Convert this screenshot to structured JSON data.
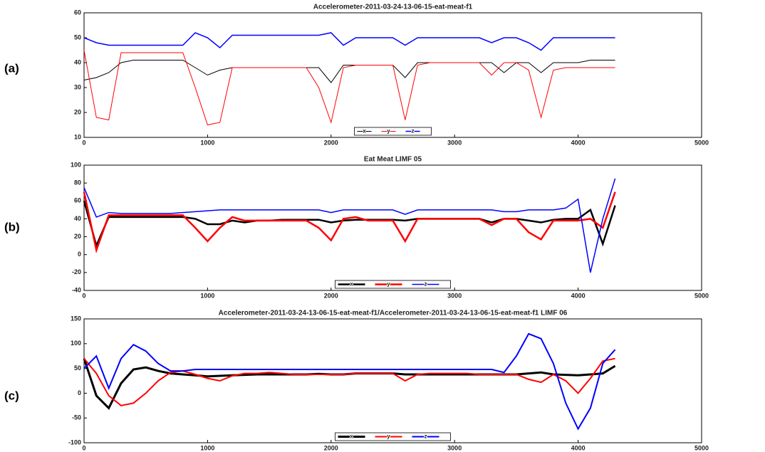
{
  "chart_data": [
    {
      "type": "line",
      "panel_label": "(a)",
      "title": "Accelerometer-2011-03-24-13-06-15-eat-meat-f1",
      "x": [
        0,
        100,
        200,
        300,
        400,
        500,
        600,
        700,
        800,
        900,
        1000,
        1100,
        1200,
        1300,
        1400,
        1500,
        1600,
        1700,
        1800,
        1900,
        2000,
        2100,
        2200,
        2300,
        2400,
        2500,
        2600,
        2700,
        2800,
        2900,
        3000,
        3100,
        3200,
        3300,
        3400,
        3500,
        3600,
        3700,
        3800,
        3900,
        4000,
        4100,
        4200,
        4300
      ],
      "xlim": [
        0,
        5000
      ],
      "xticks": [
        0,
        1000,
        2000,
        3000,
        4000,
        5000
      ],
      "ylim": [
        10,
        60
      ],
      "yticks": [
        10,
        20,
        30,
        40,
        50,
        60
      ],
      "legend": "lower center",
      "series": [
        {
          "name": "x",
          "color": "#000000",
          "linewidth": 1,
          "values": [
            33,
            34,
            36,
            40,
            41,
            41,
            41,
            41,
            41,
            38,
            35,
            37,
            38,
            38,
            38,
            38,
            38,
            38,
            38,
            38,
            32,
            39,
            39,
            39,
            39,
            39,
            34,
            40,
            40,
            40,
            40,
            40,
            40,
            40,
            36,
            40,
            40,
            36,
            40,
            40,
            40,
            41,
            41,
            41
          ]
        },
        {
          "name": "y",
          "color": "#ff0000",
          "linewidth": 1,
          "values": [
            45,
            18,
            17,
            44,
            44,
            44,
            44,
            44,
            44,
            30,
            15,
            16,
            38,
            38,
            38,
            38,
            38,
            38,
            38,
            30,
            16,
            38,
            39,
            39,
            39,
            39,
            17,
            39,
            40,
            40,
            40,
            40,
            40,
            35,
            40,
            40,
            37,
            18,
            37,
            38,
            38,
            38,
            38,
            38
          ]
        },
        {
          "name": "z",
          "color": "#0000ff",
          "linewidth": 1.5,
          "values": [
            50,
            48,
            47,
            47,
            47,
            47,
            47,
            47,
            47,
            52,
            50,
            46,
            51,
            51,
            51,
            51,
            51,
            51,
            51,
            51,
            52,
            47,
            50,
            50,
            50,
            50,
            47,
            50,
            50,
            50,
            50,
            50,
            50,
            48,
            50,
            50,
            48,
            45,
            50,
            50,
            50,
            50,
            50,
            50
          ]
        }
      ]
    },
    {
      "type": "line",
      "panel_label": "(b)",
      "title": "Eat Meat LIMF 05",
      "x": [
        0,
        100,
        200,
        300,
        400,
        500,
        600,
        700,
        800,
        900,
        1000,
        1100,
        1200,
        1300,
        1400,
        1500,
        1600,
        1700,
        1800,
        1900,
        2000,
        2100,
        2200,
        2300,
        2400,
        2500,
        2600,
        2700,
        2800,
        2900,
        3000,
        3100,
        3200,
        3300,
        3400,
        3500,
        3600,
        3700,
        3800,
        3900,
        4000,
        4100,
        4200,
        4300
      ],
      "xlim": [
        0,
        5000
      ],
      "xticks": [
        0,
        1000,
        2000,
        3000,
        4000,
        5000
      ],
      "ylim": [
        -40,
        100
      ],
      "yticks": [
        -40,
        -20,
        0,
        20,
        40,
        60,
        80,
        100
      ],
      "legend": "lower center",
      "series": [
        {
          "name": "x",
          "color": "#000000",
          "linewidth": 2.5,
          "values": [
            60,
            10,
            42,
            42,
            42,
            42,
            42,
            42,
            42,
            40,
            34,
            34,
            38,
            36,
            38,
            38,
            39,
            39,
            39,
            39,
            36,
            38,
            39,
            39,
            39,
            39,
            38,
            40,
            40,
            40,
            40,
            40,
            40,
            36,
            40,
            40,
            38,
            36,
            39,
            40,
            40,
            50,
            12,
            55
          ]
        },
        {
          "name": "y",
          "color": "#ff0000",
          "linewidth": 2.5,
          "values": [
            70,
            5,
            44,
            44,
            44,
            44,
            44,
            44,
            44,
            30,
            15,
            30,
            42,
            38,
            38,
            38,
            38,
            38,
            38,
            30,
            16,
            40,
            42,
            38,
            38,
            38,
            15,
            40,
            40,
            40,
            40,
            40,
            40,
            33,
            40,
            40,
            25,
            17,
            38,
            38,
            38,
            40,
            30,
            70
          ]
        },
        {
          "name": "z",
          "color": "#0000ff",
          "linewidth": 1.5,
          "values": [
            75,
            42,
            47,
            46,
            46,
            46,
            46,
            46,
            47,
            48,
            49,
            50,
            50,
            50,
            50,
            50,
            50,
            50,
            50,
            50,
            47,
            50,
            50,
            50,
            50,
            50,
            45,
            50,
            50,
            50,
            50,
            50,
            50,
            50,
            48,
            48,
            50,
            50,
            50,
            52,
            62,
            -20,
            40,
            85
          ]
        }
      ]
    },
    {
      "type": "line",
      "panel_label": "(c)",
      "title": "Accelerometer-2011-03-24-13-06-15-eat-meat-f1/Accelerometer-2011-03-24-13-06-15-eat-meat-f1 LIMF 06",
      "x": [
        0,
        100,
        200,
        300,
        400,
        500,
        600,
        700,
        800,
        900,
        1000,
        1100,
        1200,
        1300,
        1400,
        1500,
        1600,
        1700,
        1800,
        1900,
        2000,
        2100,
        2200,
        2300,
        2400,
        2500,
        2600,
        2700,
        2800,
        2900,
        3000,
        3100,
        3200,
        3300,
        3400,
        3500,
        3600,
        3700,
        3800,
        3900,
        4000,
        4100,
        4200,
        4300
      ],
      "xlim": [
        0,
        5000
      ],
      "xticks": [
        0,
        1000,
        2000,
        3000,
        4000,
        5000
      ],
      "ylim": [
        -100,
        150
      ],
      "yticks": [
        -100,
        -50,
        0,
        50,
        100,
        150
      ],
      "legend": "lower center",
      "series": [
        {
          "name": "x",
          "color": "#000000",
          "linewidth": 3,
          "values": [
            70,
            -5,
            -30,
            20,
            48,
            52,
            45,
            40,
            38,
            36,
            34,
            35,
            36,
            37,
            38,
            38,
            38,
            38,
            38,
            39,
            38,
            38,
            40,
            40,
            40,
            40,
            38,
            38,
            38,
            38,
            38,
            38,
            38,
            38,
            38,
            38,
            40,
            42,
            38,
            37,
            36,
            38,
            40,
            55
          ]
        },
        {
          "name": "y",
          "color": "#ff0000",
          "linewidth": 2,
          "values": [
            70,
            40,
            -5,
            -25,
            -20,
            0,
            25,
            42,
            45,
            38,
            30,
            25,
            35,
            40,
            40,
            42,
            40,
            38,
            38,
            38,
            38,
            38,
            40,
            40,
            40,
            40,
            25,
            38,
            40,
            40,
            40,
            40,
            38,
            38,
            38,
            38,
            28,
            22,
            38,
            25,
            0,
            30,
            65,
            70
          ]
        },
        {
          "name": "z",
          "color": "#0000ff",
          "linewidth": 2,
          "values": [
            50,
            75,
            10,
            70,
            98,
            85,
            60,
            45,
            45,
            48,
            48,
            48,
            48,
            48,
            48,
            48,
            48,
            48,
            48,
            48,
            48,
            48,
            48,
            48,
            48,
            48,
            48,
            48,
            48,
            48,
            48,
            48,
            48,
            48,
            42,
            75,
            120,
            110,
            60,
            -20,
            -72,
            -30,
            60,
            88
          ]
        }
      ]
    }
  ]
}
